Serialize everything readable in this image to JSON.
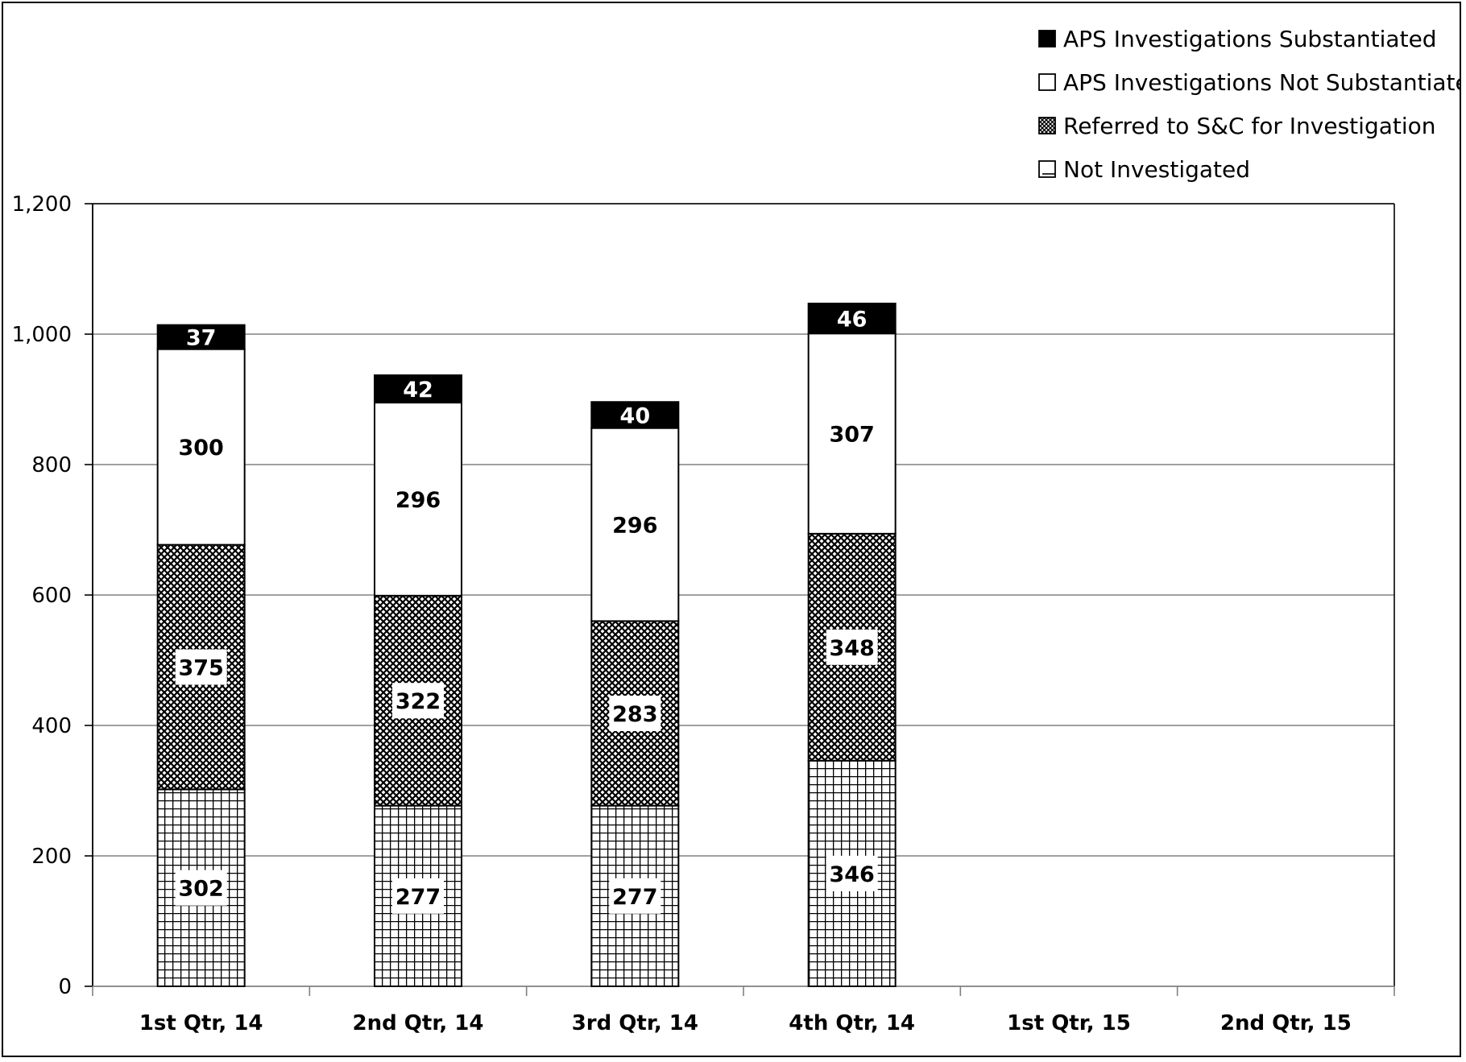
{
  "chart_data": {
    "type": "bar",
    "stacked": true,
    "categories": [
      "1st Qtr, 14",
      "2nd Qtr, 14",
      "3rd Qtr, 14",
      "4th Qtr, 14",
      "1st Qtr, 15",
      "2nd Qtr, 15"
    ],
    "ylim": [
      0,
      1200
    ],
    "yticks": [
      0,
      200,
      400,
      600,
      800,
      1000,
      1200
    ],
    "ytick_labels": [
      "0",
      "200",
      "400",
      "600",
      "800",
      "1,000",
      "1,200"
    ],
    "grid": true,
    "legend_position": "top-right",
    "series": [
      {
        "name": "Not Investigated",
        "pattern": "grid",
        "values": [
          302,
          277,
          277,
          346,
          null,
          null
        ]
      },
      {
        "name": "Referred to S&C for Investigation",
        "pattern": "crosshatch",
        "values": [
          375,
          322,
          283,
          348,
          null,
          null
        ]
      },
      {
        "name": "APS Investigations Not Substantiated",
        "pattern": "white",
        "values": [
          300,
          296,
          296,
          307,
          null,
          null
        ]
      },
      {
        "name": "APS Investigations Substantiated",
        "pattern": "black",
        "values": [
          37,
          42,
          40,
          46,
          null,
          null
        ]
      }
    ],
    "legend_order": [
      "APS Investigations Substantiated",
      "APS Investigations Not Substantiated",
      "Referred to S&C for Investigation",
      "Not Investigated"
    ],
    "colors": {
      "bar_outline": "#000000",
      "grid": "#808080",
      "fill_black": "#000000",
      "fill_white": "#ffffff"
    }
  }
}
